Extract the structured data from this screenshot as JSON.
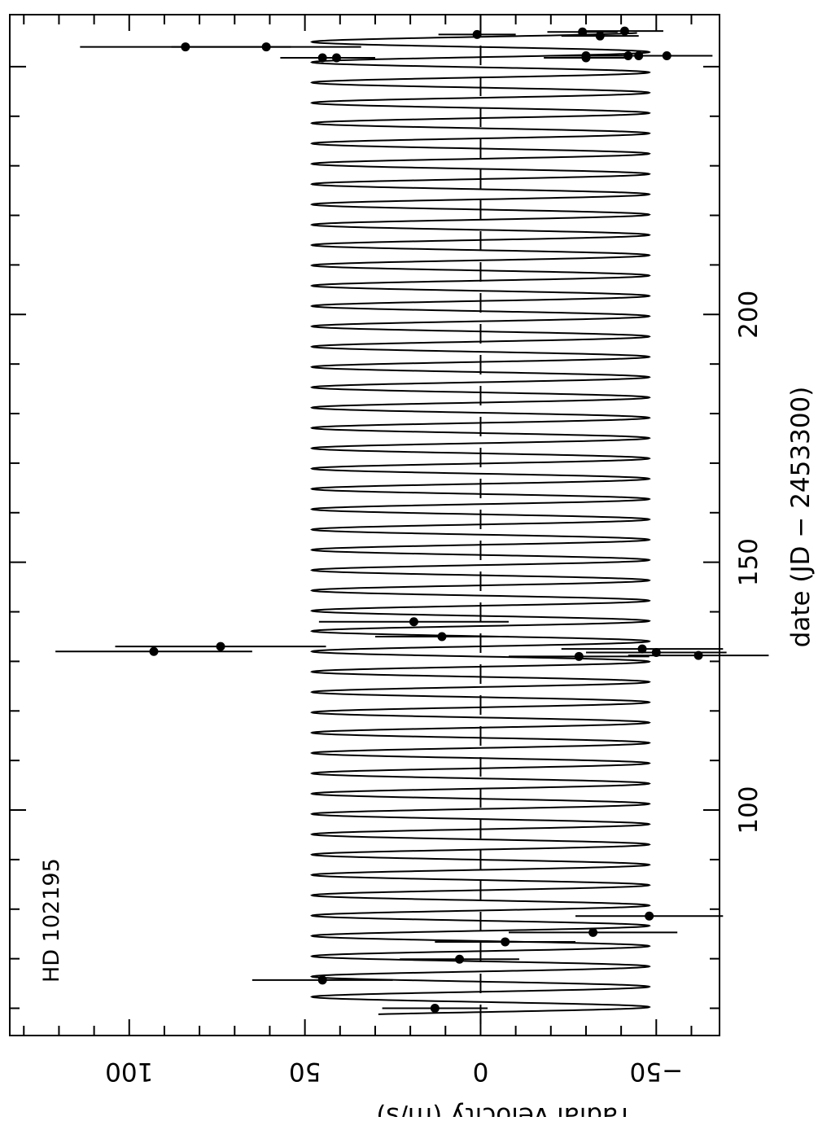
{
  "chart_data": {
    "type": "scatter",
    "title": "",
    "annotation": "HD 102195",
    "xlabel": "date (JD − 2453300)",
    "ylabel": "radial velocity (m/s)",
    "xlim": [
      54.5,
      260.5
    ],
    "ylim": [
      -68,
      134
    ],
    "x_major_ticks": [
      100,
      150,
      200
    ],
    "x_tick_labels": [
      "100",
      "150",
      "200"
    ],
    "y_major_ticks": [
      -50,
      0,
      50,
      100
    ],
    "y_tick_labels": [
      "−50",
      "0",
      "50",
      "100"
    ],
    "reference_line_y": 0,
    "model": {
      "name": "",
      "amplitude": 48,
      "period": 4.1,
      "x_start": 58.8,
      "x_end": 256.8,
      "phase_x_at_max": 58.2
    },
    "points": [
      {
        "x": 60.0,
        "y": 13,
        "err": 15
      },
      {
        "x": 65.7,
        "y": 45,
        "err": 20
      },
      {
        "x": 69.9,
        "y": 6,
        "err": 17
      },
      {
        "x": 73.4,
        "y": -7,
        "err": 20
      },
      {
        "x": 75.3,
        "y": -32,
        "err": 24
      },
      {
        "x": 78.6,
        "y": -48,
        "err": 21
      },
      {
        "x": 132.0,
        "y": 93,
        "err": 28
      },
      {
        "x": 133.0,
        "y": 74,
        "err": 30
      },
      {
        "x": 138.0,
        "y": 19,
        "err": 27
      },
      {
        "x": 135.0,
        "y": 11,
        "err": 19
      },
      {
        "x": 131.0,
        "y": -28,
        "err": 20
      },
      {
        "x": 131.8,
        "y": -50,
        "err": 20
      },
      {
        "x": 132.5,
        "y": -46,
        "err": 23
      },
      {
        "x": 131.2,
        "y": -62,
        "err": 20
      },
      {
        "x": 254.0,
        "y": 84,
        "err": 30
      },
      {
        "x": 254.0,
        "y": 61,
        "err": 27
      },
      {
        "x": 251.8,
        "y": 45,
        "err": 12
      },
      {
        "x": 251.8,
        "y": 41,
        "err": 11
      },
      {
        "x": 256.5,
        "y": 1,
        "err": 11
      },
      {
        "x": 257.0,
        "y": -29,
        "err": 10
      },
      {
        "x": 256.2,
        "y": -34,
        "err": 11
      },
      {
        "x": 257.2,
        "y": -41,
        "err": 11
      },
      {
        "x": 252.2,
        "y": -30,
        "err": 10
      },
      {
        "x": 251.8,
        "y": -30,
        "err": 12
      },
      {
        "x": 252.2,
        "y": -42,
        "err": 9
      },
      {
        "x": 252.2,
        "y": -45,
        "err": 12
      },
      {
        "x": 252.2,
        "y": -53,
        "err": 13
      }
    ]
  }
}
